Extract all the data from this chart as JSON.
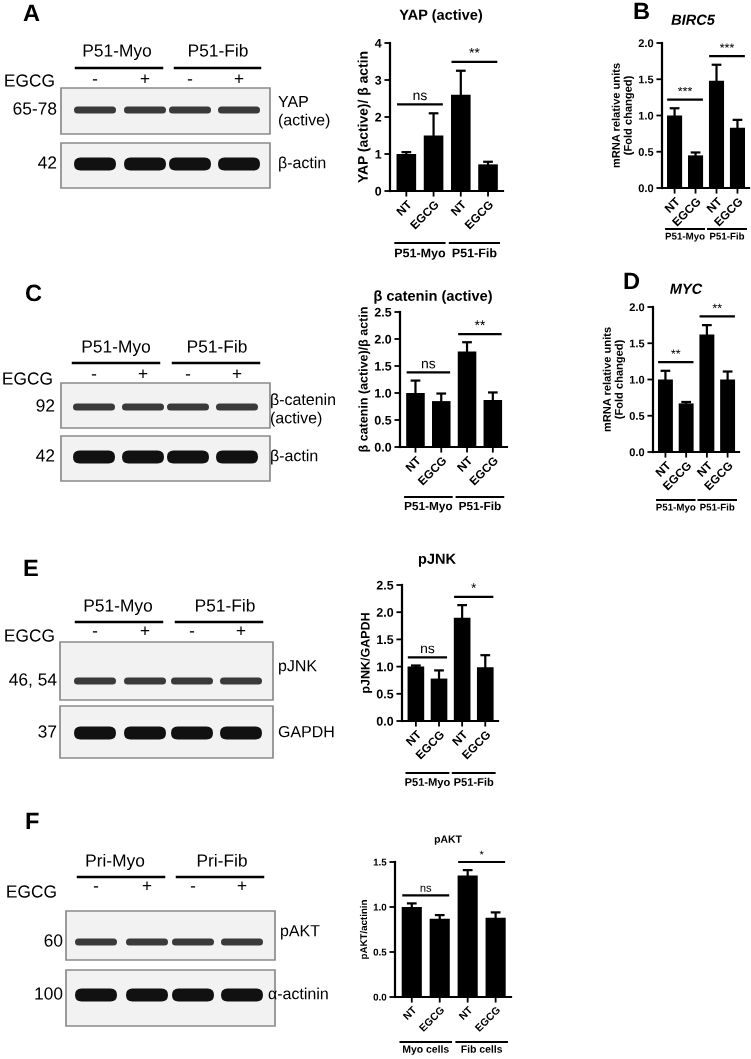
{
  "chart_data": [
    {
      "type": "other",
      "annotations": [
        "A",
        "P51-Myo",
        "P51-Fib",
        "EGCG",
        "-",
        "+",
        "-",
        "+",
        "65-78",
        "YAP\n(active)",
        "42",
        "β-actin"
      ]
    },
    {
      "type": "bar",
      "title": "YAP (active)",
      "ylabel": "YAP (active)/ β actin",
      "categories": [
        "NT",
        "EGCG",
        "NT",
        "EGCG"
      ],
      "values": [
        1.0,
        1.5,
        2.6,
        0.72
      ],
      "errors": [
        0.05,
        0.6,
        0.65,
        0.07
      ],
      "color": "#000000",
      "ylim": [
        0,
        4
      ],
      "yticks": [
        0,
        1,
        2,
        3,
        4
      ],
      "annotations": [
        "ns",
        "**",
        "P51-Myo",
        "P51-Fib"
      ]
    },
    {
      "type": "bar",
      "title": "BIRC5",
      "ylabel": "mRNA relative units\n(Fold changed)",
      "categories": [
        "NT",
        "EGCG",
        "NT",
        "EGCG"
      ],
      "values": [
        1.0,
        0.45,
        1.48,
        0.83
      ],
      "errors": [
        0.1,
        0.04,
        0.22,
        0.11
      ],
      "color": "#000000",
      "ylim": [
        0,
        2
      ],
      "yticks": [
        {
          "value": 0,
          "label": "0.0"
        },
        0.5,
        {
          "value": 1,
          "label": "1.0"
        },
        1.5,
        {
          "value": 2,
          "label": "2.0"
        }
      ],
      "annotations": [
        "***",
        "***",
        "P51-Myo",
        "P51-Fib",
        "B"
      ]
    },
    {
      "type": "other",
      "annotations": [
        "C",
        "P51-Myo",
        "P51-Fib",
        "EGCG",
        "-",
        "+",
        "-",
        "+",
        "92",
        "β-catenin\n(active)",
        "42",
        "β-actin"
      ]
    },
    {
      "type": "bar",
      "title": "β catenin (active)",
      "ylabel": "β catenin (active)/β actin",
      "categories": [
        "NT",
        "EGCG",
        "NT",
        "EGCG"
      ],
      "values": [
        1.0,
        0.85,
        1.77,
        0.87
      ],
      "errors": [
        0.23,
        0.14,
        0.17,
        0.14
      ],
      "color": "#000000",
      "ylim": [
        0,
        2.5
      ],
      "yticks": [
        {
          "value": 0,
          "label": "0.0"
        },
        0.5,
        {
          "value": 1,
          "label": "1.0"
        },
        1.5,
        {
          "value": 2,
          "label": "2.0"
        },
        2.5
      ],
      "annotations": [
        "ns",
        "**",
        "P51-Myo",
        "P51-Fib"
      ]
    },
    {
      "type": "bar",
      "title": "MYC",
      "ylabel": "mRNA relative units\n(Fold changed)",
      "categories": [
        "NT",
        "EGCG",
        "NT",
        "EGCG"
      ],
      "values": [
        1.0,
        0.67,
        1.62,
        1.0
      ],
      "errors": [
        0.12,
        0.02,
        0.13,
        0.11
      ],
      "color": "#000000",
      "ylim": [
        0,
        2
      ],
      "yticks": [
        {
          "value": 0,
          "label": "0.0"
        },
        0.5,
        {
          "value": 1,
          "label": "1.0"
        },
        1.5,
        {
          "value": 2,
          "label": "2.0"
        }
      ],
      "annotations": [
        "**",
        "**",
        "P51-Myo",
        "P51-Fib",
        "D"
      ]
    },
    {
      "type": "other",
      "annotations": [
        "E",
        "P51-Myo",
        "P51-Fib",
        "EGCG",
        "-",
        "+",
        "-",
        "+",
        "46, 54",
        "pJNK",
        "37",
        "GAPDH"
      ]
    },
    {
      "type": "bar",
      "title": "pJNK",
      "ylabel": "pJNK/GAPDH",
      "categories": [
        "NT",
        "EGCG",
        "NT",
        "EGCG"
      ],
      "values": [
        1.0,
        0.78,
        1.9,
        0.99
      ],
      "errors": [
        0.02,
        0.15,
        0.23,
        0.22
      ],
      "color": "#000000",
      "ylim": [
        0,
        2.5
      ],
      "yticks": [
        {
          "value": 0,
          "label": "0.0"
        },
        0.5,
        {
          "value": 1,
          "label": "1.0"
        },
        1.5,
        {
          "value": 2,
          "label": "2.0"
        },
        2.5
      ],
      "annotations": [
        "ns",
        "*",
        "P51-Myo",
        "P51-Fib"
      ]
    },
    {
      "type": "other",
      "annotations": [
        "F",
        "Pri-Myo",
        "Pri-Fib",
        "EGCG",
        "-",
        "+",
        "-",
        "+",
        "60",
        "pAKT",
        "100",
        "α-actinin"
      ]
    },
    {
      "type": "bar",
      "title": "pAKT",
      "ylabel": "pAKT/actinin",
      "categories": [
        "NT",
        "EGCG",
        "NT",
        "EGCG"
      ],
      "values": [
        1.0,
        0.87,
        1.35,
        0.88
      ],
      "errors": [
        0.04,
        0.04,
        0.06,
        0.06
      ],
      "color": "#000000",
      "ylim": [
        0,
        1.5
      ],
      "yticks": [
        {
          "value": 0,
          "label": "0.0"
        },
        0.5,
        {
          "value": 1,
          "label": "1.0"
        },
        1.5
      ],
      "annotations": [
        "ns",
        "*",
        "Myo cells",
        "Fib cells"
      ]
    }
  ]
}
